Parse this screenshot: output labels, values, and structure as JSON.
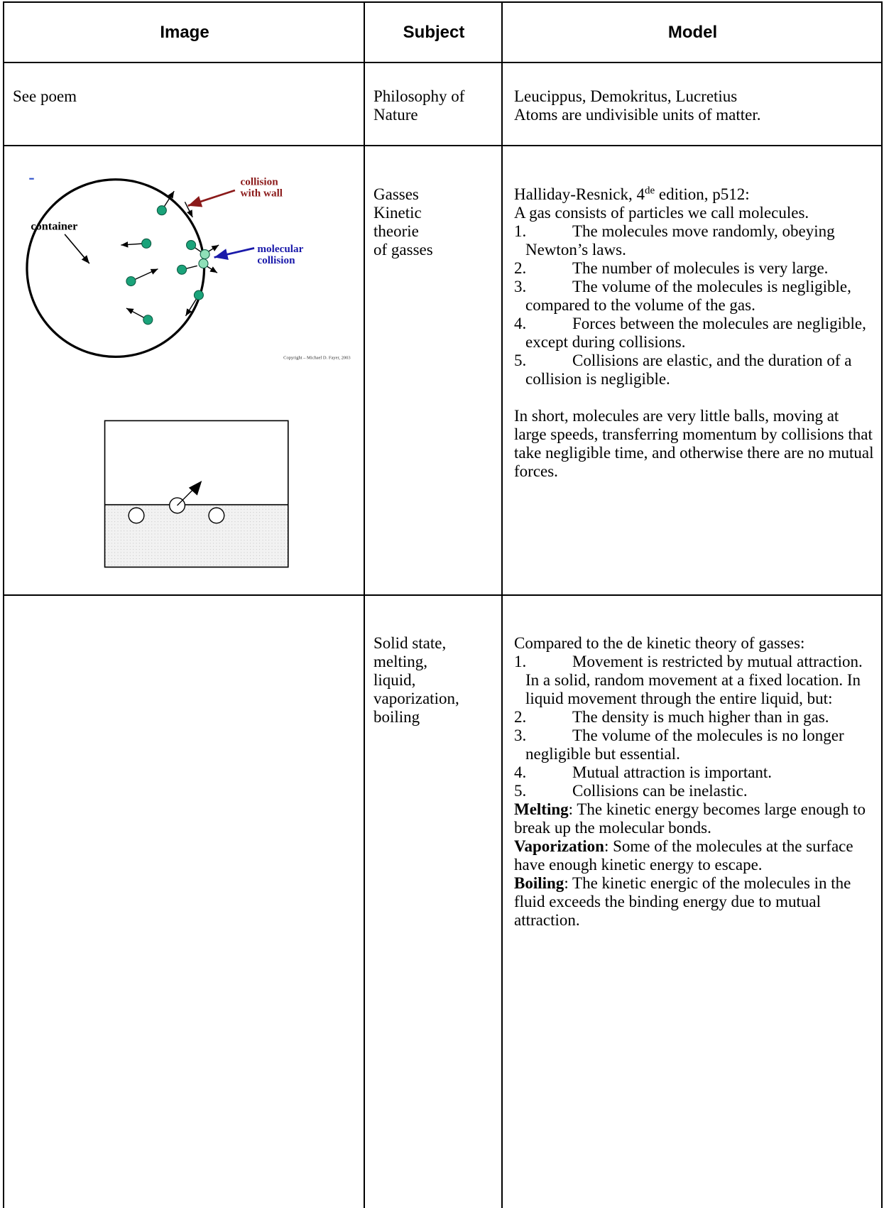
{
  "table": {
    "headers": [
      "Image",
      "Subject",
      "Model"
    ],
    "rows": [
      {
        "image": "See poem",
        "subject": [
          "Philosophy of",
          "Nature"
        ],
        "model": {
          "lines": [
            "Leucippus, Demokritus, Lucretius",
            "Atoms are undivisible units of matter."
          ]
        }
      },
      {
        "image_labels": [
          "collision",
          "with wall",
          "container",
          "molecular",
          "collision",
          "Copyright – Michael D. Fayer, 2003"
        ],
        "subject": [
          "Gasses",
          "Kinetic",
          "theorie",
          "of gasses"
        ],
        "model": {
          "source": {
            "before": "Halliday-Resnick, 4",
            "sup": "de",
            "after": " edition, p512:"
          },
          "lines": [
            "A gas consists of particles we call molecules."
          ],
          "items": [
            {
              "number": "1.",
              "text": "The molecules move randomly, obeying Newton’s laws."
            },
            {
              "number": "2.",
              "text": "The number of molecules is very large."
            },
            {
              "number": "3.",
              "text": "The volume of the molecules is negligible, compared to the volume of the gas."
            },
            {
              "number": "4.",
              "text": "Forces between the molecules are negligible, except during collisions."
            },
            {
              "number": "5.",
              "text": "Collisions are elastic, and the duration of a collision is negligible."
            }
          ],
          "closing": "In short, molecules are very little balls, moving at large speeds, transferring momentum by collisions that take negligible time, and otherwise there are no mutual forces."
        }
      },
      {
        "subject": [
          "Solid state,",
          "melting,",
          "liquid,",
          "vaporization,",
          "boiling"
        ],
        "model": {
          "lines": [
            "Compared to the de kinetic theory of gasses:"
          ],
          "items": [
            {
              "number": "1.",
              "text": "Movement is restricted by mutual attraction. In a solid, random movement at a fixed location. In liquid movement through the entire liquid, but:"
            },
            {
              "number": "2.",
              "text": "The density is much higher than in gas."
            },
            {
              "number": "3.",
              "text": "The volume of the molecules is no longer negligible but essential."
            },
            {
              "number": "4.",
              "text": "Mutual attraction is important."
            },
            {
              "number": "5.",
              "text": "Collisions can be inelastic."
            }
          ],
          "terms": [
            {
              "term": "Melting",
              "text": ": The kinetic energy becomes large enough to break up the molecular bonds."
            },
            {
              "term": "Vaporization",
              "text": ": Some of the molecules at the surface have enough kinetic energy to escape."
            },
            {
              "term": "Boiling",
              "text": ":  The kinetic energic of the molecules in the fluid exceeds the binding energy due to mutual attraction."
            }
          ]
        }
      }
    ]
  }
}
